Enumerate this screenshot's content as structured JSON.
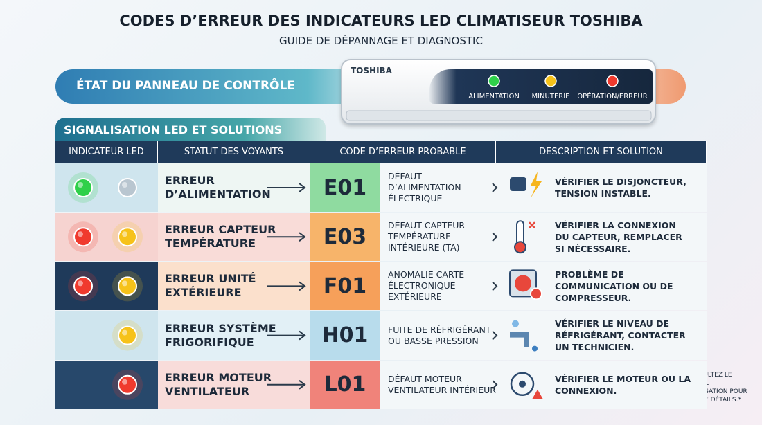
{
  "header": {
    "title": "CODES D’ERREUR DES INDICATEURS LED CLIMATISEUR TOSHIBA",
    "subtitle": "GUIDE DE DÉPANNAGE ET DIAGNOSTIC"
  },
  "panel": {
    "label": "ÉTAT DU PANNEAU DE CONTRÔLE"
  },
  "device": {
    "brand": "TOSHIBA",
    "leds": [
      "ALIMENTATION",
      "MINUTERIE",
      "OPÉRATION/ERREUR"
    ]
  },
  "section": {
    "title": "SIGNALISATION LED ET SOLUTIONS"
  },
  "table": {
    "headers": [
      "INDICATEUR LED",
      "STATUT DES VOYANTS",
      "CODE D’ERREUR PROBABLE",
      "DESCRIPTION ET SOLUTION"
    ],
    "rows": [
      {
        "status": "ERREUR D’ALIMENTATION",
        "code": "E01",
        "description": "DÉFAUT D’ALIMENTATION ÉLECTRIQUE",
        "solution": "VÉRIFIER LE DISJONCTEUR, TENSION INSTABLE."
      },
      {
        "status": "ERREUR CAPTEUR TEMPÉRATURE",
        "code": "E03",
        "description": "DÉFAUT CAPTEUR TEMPÉRATURE INTÉRIEURE (TA)",
        "solution": "VÉRIFIER LA CONNEXION DU CAPTEUR, REMPLACER SI NÉCESSAIRE."
      },
      {
        "status": "ERREUR UNITÉ EXTÉRIEURE",
        "code": "F01",
        "description": "ANOMALIE CARTE ÉLECTRONIQUE EXTÉRIEURE",
        "solution": "PROBLÈME DE COMMUNICATION OU DE COMPRESSEUR."
      },
      {
        "status": "ERREUR SYSTÈME FRIGORIFIQUE",
        "code": "H01",
        "description": "FUITE DE RÉFRIGÉRANT OU BASSE PRESSION",
        "solution": "VÉRIFIER LE NIVEAU DE RÉFRIGÉRANT, CONTACTER UN TECHNICIEN."
      },
      {
        "status": "ERREUR MOTEUR VENTILATEUR",
        "code": "L01",
        "description": "DÉFAUT MOTEUR VENTILATEUR INTÉRIEUR",
        "solution": "VÉRIFIER LE MOTEUR OU LA CONNEXION."
      }
    ]
  },
  "footnote": "*CONSULTEZ LE MANUEL D’UTILISATION POUR PLUS DE DÉTAILS.*"
}
